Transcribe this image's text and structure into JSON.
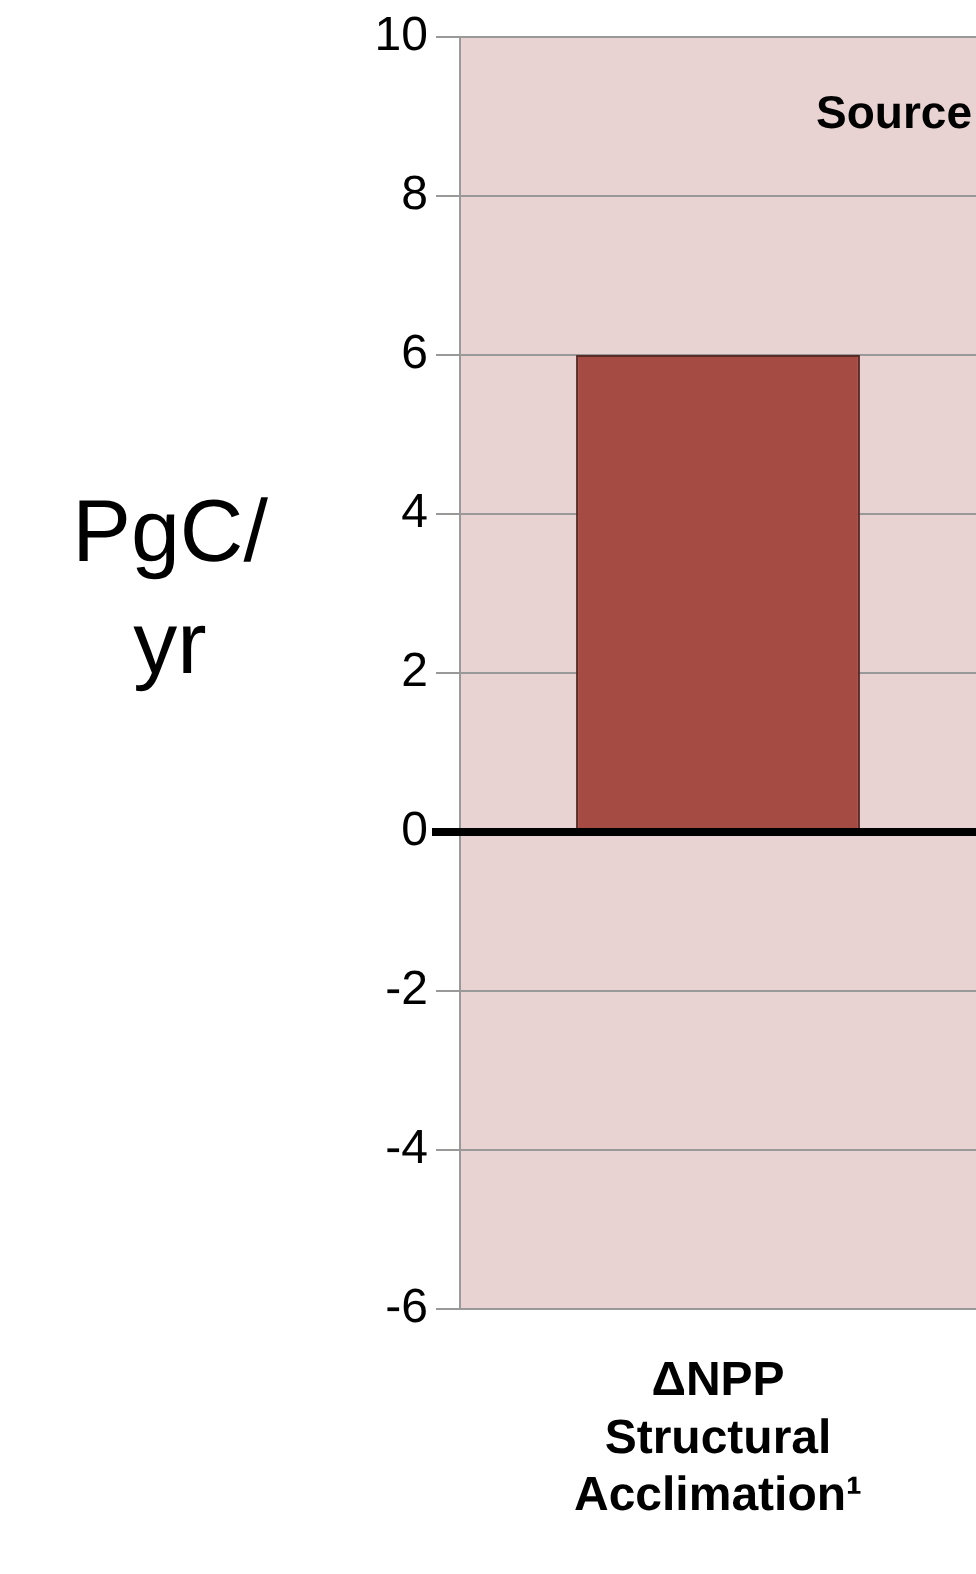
{
  "chart_data": {
    "type": "bar",
    "ylabel": "PgC/ yr",
    "categories": [
      "ΔNPP Structural Acclimation¹"
    ],
    "values": [
      6
    ],
    "color": "#a54b44",
    "ylim": [
      -6,
      10
    ],
    "yticks": [
      -6,
      -4,
      -2,
      0,
      2,
      4,
      6,
      8,
      10
    ],
    "grid": "y",
    "bands": [
      {
        "axis": "y",
        "from": -6,
        "to": 10,
        "label": "Source",
        "color": "#e8d2d2"
      }
    ],
    "ref_lines": [
      {
        "axis": "y",
        "value": 0,
        "color": "#000000"
      }
    ]
  }
}
